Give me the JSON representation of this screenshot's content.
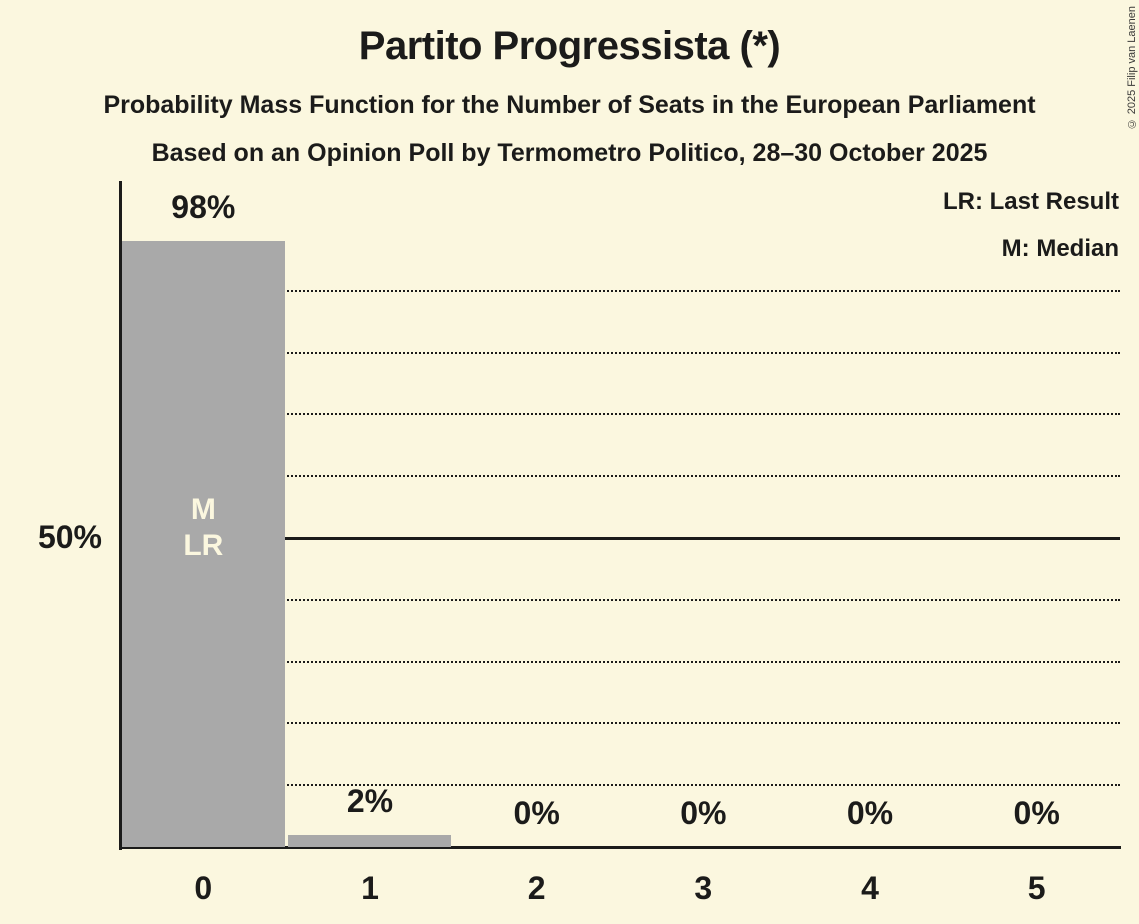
{
  "page": {
    "background_color": "#FBF7DF",
    "text_color": "#1B1B1A"
  },
  "header": {
    "title": "Partito Progressista (*)",
    "subtitle1": "Probability Mass Function for the Number of Seats in the European Parliament",
    "subtitle2": "Based on an Opinion Poll by Termometro Politico, 28–30 October 2025"
  },
  "legend": {
    "line1": "LR: Last Result",
    "line2": "M: Median"
  },
  "copyright": "© 2025 Filip van Laenen",
  "chart_data": {
    "type": "bar",
    "title": "Partito Progressista (*)",
    "categories": [
      "0",
      "1",
      "2",
      "3",
      "4",
      "5"
    ],
    "values": [
      98,
      2,
      0,
      0,
      0,
      0
    ],
    "value_labels": [
      "98%",
      "2%",
      "0%",
      "0%",
      "0%",
      "0%"
    ],
    "xlabel": "",
    "ylabel": "",
    "ylim": [
      0,
      108
    ],
    "ytick": {
      "value": 50,
      "label": "50%"
    },
    "gridlines": {
      "dotted_percents": [
        10,
        20,
        30,
        40,
        60,
        70,
        80,
        90
      ],
      "solid_percent": 50
    },
    "annotations": [
      {
        "category_index": 0,
        "lines": [
          "M",
          "LR"
        ],
        "meanings": [
          "Median",
          "Last Result"
        ]
      }
    ],
    "median_seats": 0,
    "last_result_seats": 0,
    "legend_position": "top-right",
    "grid": true,
    "colors": {
      "bar": "#A9A9A9",
      "annotation_text": "#FBF7DF",
      "background": "#FBF7DF",
      "text": "#1B1B1A"
    }
  }
}
